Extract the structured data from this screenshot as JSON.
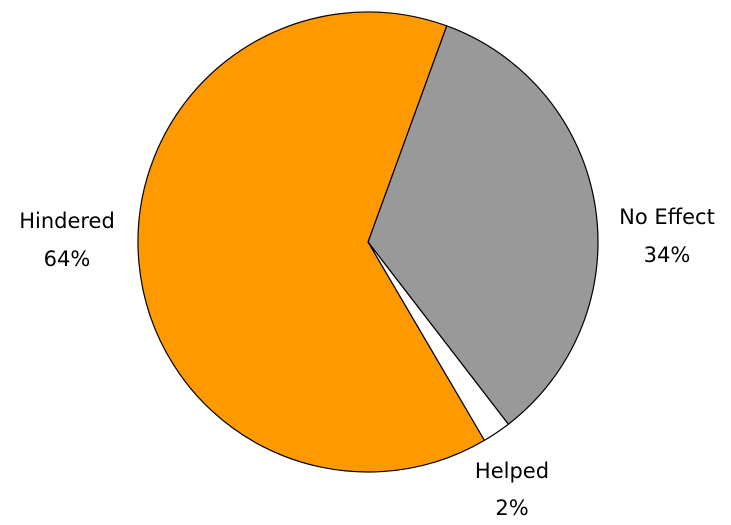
{
  "chart_data": {
    "type": "pie",
    "title": "",
    "slices": [
      {
        "name": "No Effect",
        "value": 34,
        "value_label": "34%",
        "color": "#999999"
      },
      {
        "name": "Helped",
        "value": 2,
        "value_label": "2%",
        "color": "#ffffff"
      },
      {
        "name": "Hindered",
        "value": 64,
        "value_label": "64%",
        "color": "#ff9900"
      }
    ],
    "start_angle_deg": 20,
    "direction": "clockwise",
    "outline_color": "#000000",
    "legend": "none"
  }
}
